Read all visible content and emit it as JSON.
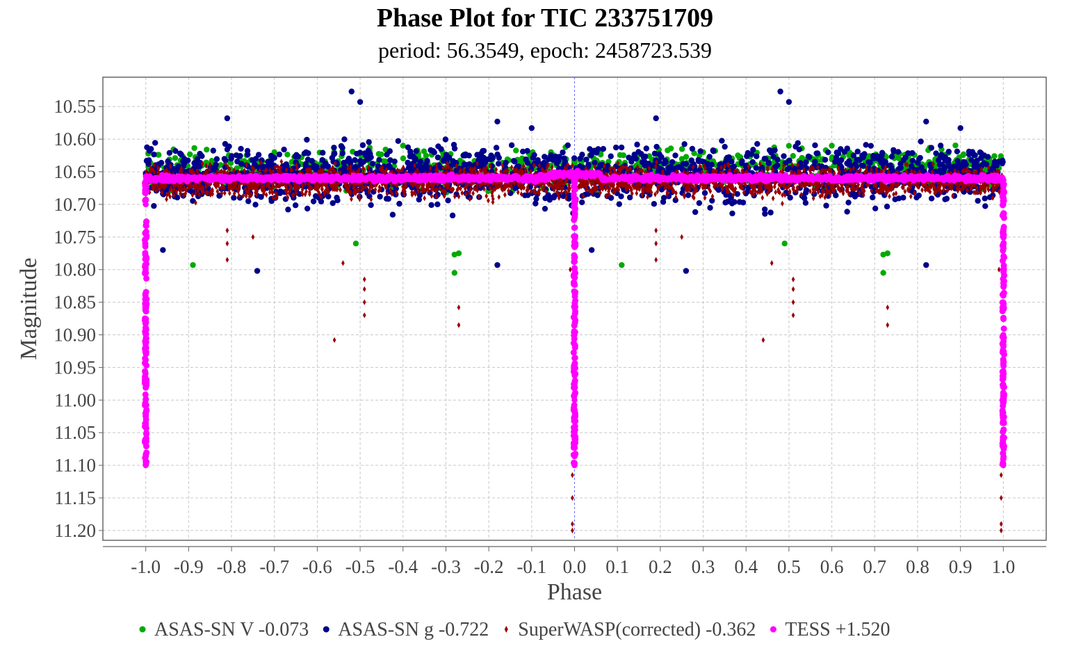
{
  "chart_data": {
    "type": "scatter",
    "title": "Phase Plot for TIC 233751709",
    "subtitle": "period: 56.3549, epoch: 2458723.539",
    "xlabel": "Phase",
    "ylabel": "Magnitude",
    "xlim": [
      -1.1,
      1.1
    ],
    "ylim": [
      11.215,
      10.505
    ],
    "y_inverted": true,
    "grid": true,
    "legend_placement": "bottom",
    "x_ticks": [
      "-1.0",
      "-0.9",
      "-0.8",
      "-0.7",
      "-0.6",
      "-0.5",
      "-0.4",
      "-0.3",
      "-0.2",
      "-0.1",
      "0.0",
      "0.1",
      "0.2",
      "0.3",
      "0.4",
      "0.5",
      "0.6",
      "0.7",
      "0.8",
      "0.9",
      "1.0"
    ],
    "y_ticks": [
      "10.55",
      "10.60",
      "10.65",
      "10.70",
      "10.75",
      "10.80",
      "10.85",
      "10.90",
      "10.95",
      "11.00",
      "11.05",
      "11.10",
      "11.15",
      "11.20"
    ],
    "series": [
      {
        "name": "ASAS-SN V -0.073",
        "color": "#00aa00",
        "marker": "circle",
        "base_mag": 10.645,
        "scatter": 0.05,
        "points": [
          [
            -0.89,
            10.793
          ],
          [
            0.11,
            10.793
          ],
          [
            -0.28,
            10.805
          ],
          [
            0.72,
            10.805
          ],
          [
            -0.28,
            10.777
          ],
          [
            0.72,
            10.777
          ],
          [
            -0.27,
            10.775
          ],
          [
            0.73,
            10.775
          ],
          [
            -0.51,
            10.76
          ],
          [
            0.49,
            10.76
          ],
          [
            -0.22,
            10.625
          ],
          [
            0.78,
            10.625
          ],
          [
            -0.7,
            10.62
          ],
          [
            0.3,
            10.62
          ],
          [
            -0.4,
            10.61
          ],
          [
            0.6,
            10.61
          ]
        ]
      },
      {
        "name": "ASAS-SN g -0.722",
        "color": "#00008b",
        "marker": "circle",
        "base_mag": 10.655,
        "scatter": 0.075,
        "points": [
          [
            -0.52,
            10.527
          ],
          [
            0.48,
            10.527
          ],
          [
            -0.5,
            10.543
          ],
          [
            0.5,
            10.543
          ],
          [
            -0.81,
            10.568
          ],
          [
            0.19,
            10.568
          ],
          [
            -0.18,
            10.573
          ],
          [
            0.82,
            10.573
          ],
          [
            -0.1,
            10.583
          ],
          [
            0.9,
            10.583
          ],
          [
            -0.18,
            10.793
          ],
          [
            0.82,
            10.793
          ],
          [
            -0.74,
            10.802
          ],
          [
            0.26,
            10.802
          ],
          [
            -0.96,
            10.77
          ],
          [
            0.04,
            10.77
          ]
        ]
      },
      {
        "name": "SuperWASP(corrected) -0.362",
        "color": "#990000",
        "marker": "diamond",
        "base_mag": 10.665,
        "scatter": 0.04,
        "points": [
          [
            -0.005,
            11.2
          ],
          [
            0.995,
            11.2
          ],
          [
            -0.005,
            11.19
          ],
          [
            0.995,
            11.19
          ],
          [
            -0.005,
            11.15
          ],
          [
            0.995,
            11.15
          ],
          [
            -0.005,
            11.115
          ],
          [
            0.995,
            11.115
          ],
          [
            -0.56,
            10.908
          ],
          [
            0.44,
            10.908
          ],
          [
            -0.49,
            10.87
          ],
          [
            0.51,
            10.87
          ],
          [
            -0.49,
            10.85
          ],
          [
            0.51,
            10.85
          ],
          [
            -0.49,
            10.83
          ],
          [
            0.51,
            10.83
          ],
          [
            -0.49,
            10.815
          ],
          [
            0.51,
            10.815
          ],
          [
            -0.27,
            10.885
          ],
          [
            0.73,
            10.885
          ],
          [
            -0.27,
            10.858
          ],
          [
            0.73,
            10.858
          ],
          [
            -0.81,
            10.785
          ],
          [
            0.19,
            10.785
          ],
          [
            -0.81,
            10.76
          ],
          [
            0.19,
            10.76
          ],
          [
            -0.81,
            10.74
          ],
          [
            0.19,
            10.74
          ],
          [
            -0.54,
            10.79
          ],
          [
            0.46,
            10.79
          ],
          [
            -0.75,
            10.75
          ],
          [
            0.25,
            10.75
          ],
          [
            -0.01,
            10.8
          ],
          [
            0.99,
            10.8
          ]
        ]
      },
      {
        "name": "TESS +1.520",
        "color": "#ff00ff",
        "marker": "circle",
        "base_mag": 10.66,
        "eclipse_depth": 11.1,
        "points": [
          [
            -1.0,
            11.1
          ],
          [
            -1.0,
            11.0
          ],
          [
            -1.0,
            10.9
          ],
          [
            -1.0,
            10.8
          ],
          [
            -1.0,
            10.7
          ],
          [
            0.0,
            11.1
          ],
          [
            0.0,
            11.0
          ],
          [
            0.0,
            10.9
          ],
          [
            0.0,
            10.8
          ],
          [
            0.0,
            10.7
          ],
          [
            1.0,
            11.1
          ],
          [
            1.0,
            11.0
          ],
          [
            1.0,
            10.9
          ],
          [
            1.0,
            10.8
          ],
          [
            1.0,
            10.7
          ],
          [
            -0.5,
            10.662
          ],
          [
            0.5,
            10.662
          ],
          [
            -0.05,
            10.655
          ],
          [
            0.95,
            10.655
          ]
        ]
      }
    ]
  }
}
